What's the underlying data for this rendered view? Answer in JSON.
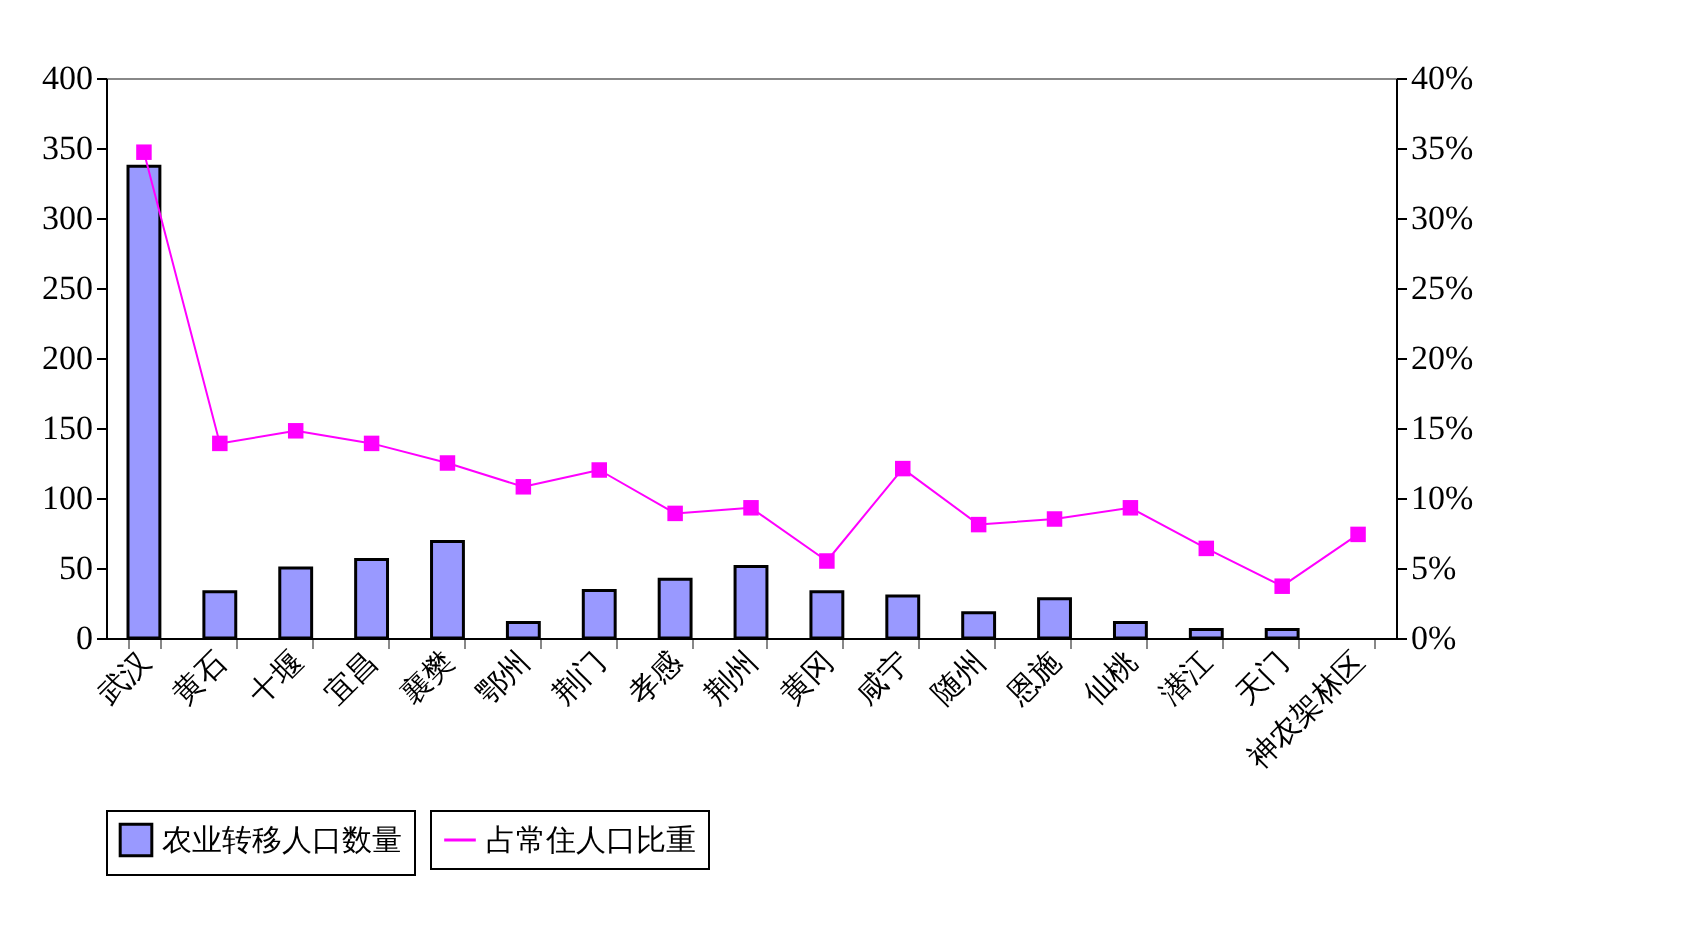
{
  "chart_data": {
    "type": "bar",
    "categories": [
      "武汉",
      "黄石",
      "十堰",
      "宜昌",
      "襄樊",
      "鄂州",
      "荆门",
      "孝感",
      "荆州",
      "黄冈",
      "咸宁",
      "随州",
      "恩施",
      "仙桃",
      "潜江",
      "天门",
      "神农架林区"
    ],
    "series": [
      {
        "name": "农业转移人口数量",
        "color": "#9999ff",
        "values": [
          337,
          33,
          50,
          56,
          69,
          11,
          34,
          42,
          51,
          33,
          30,
          18,
          28,
          11,
          6,
          6,
          null
        ]
      },
      {
        "name": "占常住人口比重",
        "type": "line",
        "axis": "y2",
        "color": "#ff00ff",
        "marker": "square",
        "values": [
          34.7,
          13.9,
          14.8,
          13.9,
          12.5,
          10.8,
          12.0,
          8.9,
          9.3,
          5.5,
          12.1,
          8.1,
          8.5,
          9.3,
          6.4,
          3.7,
          7.4
        ]
      }
    ],
    "ylim": [
      0,
      400
    ],
    "yticks": [
      0,
      50,
      100,
      150,
      200,
      250,
      300,
      350,
      400
    ],
    "y2lim": [
      0,
      40
    ],
    "y2ticks": [
      {
        "value": 0,
        "label": "0%"
      },
      {
        "value": 5,
        "label": "5%"
      },
      {
        "value": 10,
        "label": "10%"
      },
      {
        "value": 15,
        "label": "15%"
      },
      {
        "value": 20,
        "label": "20%"
      },
      {
        "value": 25,
        "label": "25%"
      },
      {
        "value": 30,
        "label": "30%"
      },
      {
        "value": 35,
        "label": "35%"
      },
      {
        "value": 40,
        "label": "40%"
      }
    ],
    "grid": false,
    "legend": "bottom"
  }
}
